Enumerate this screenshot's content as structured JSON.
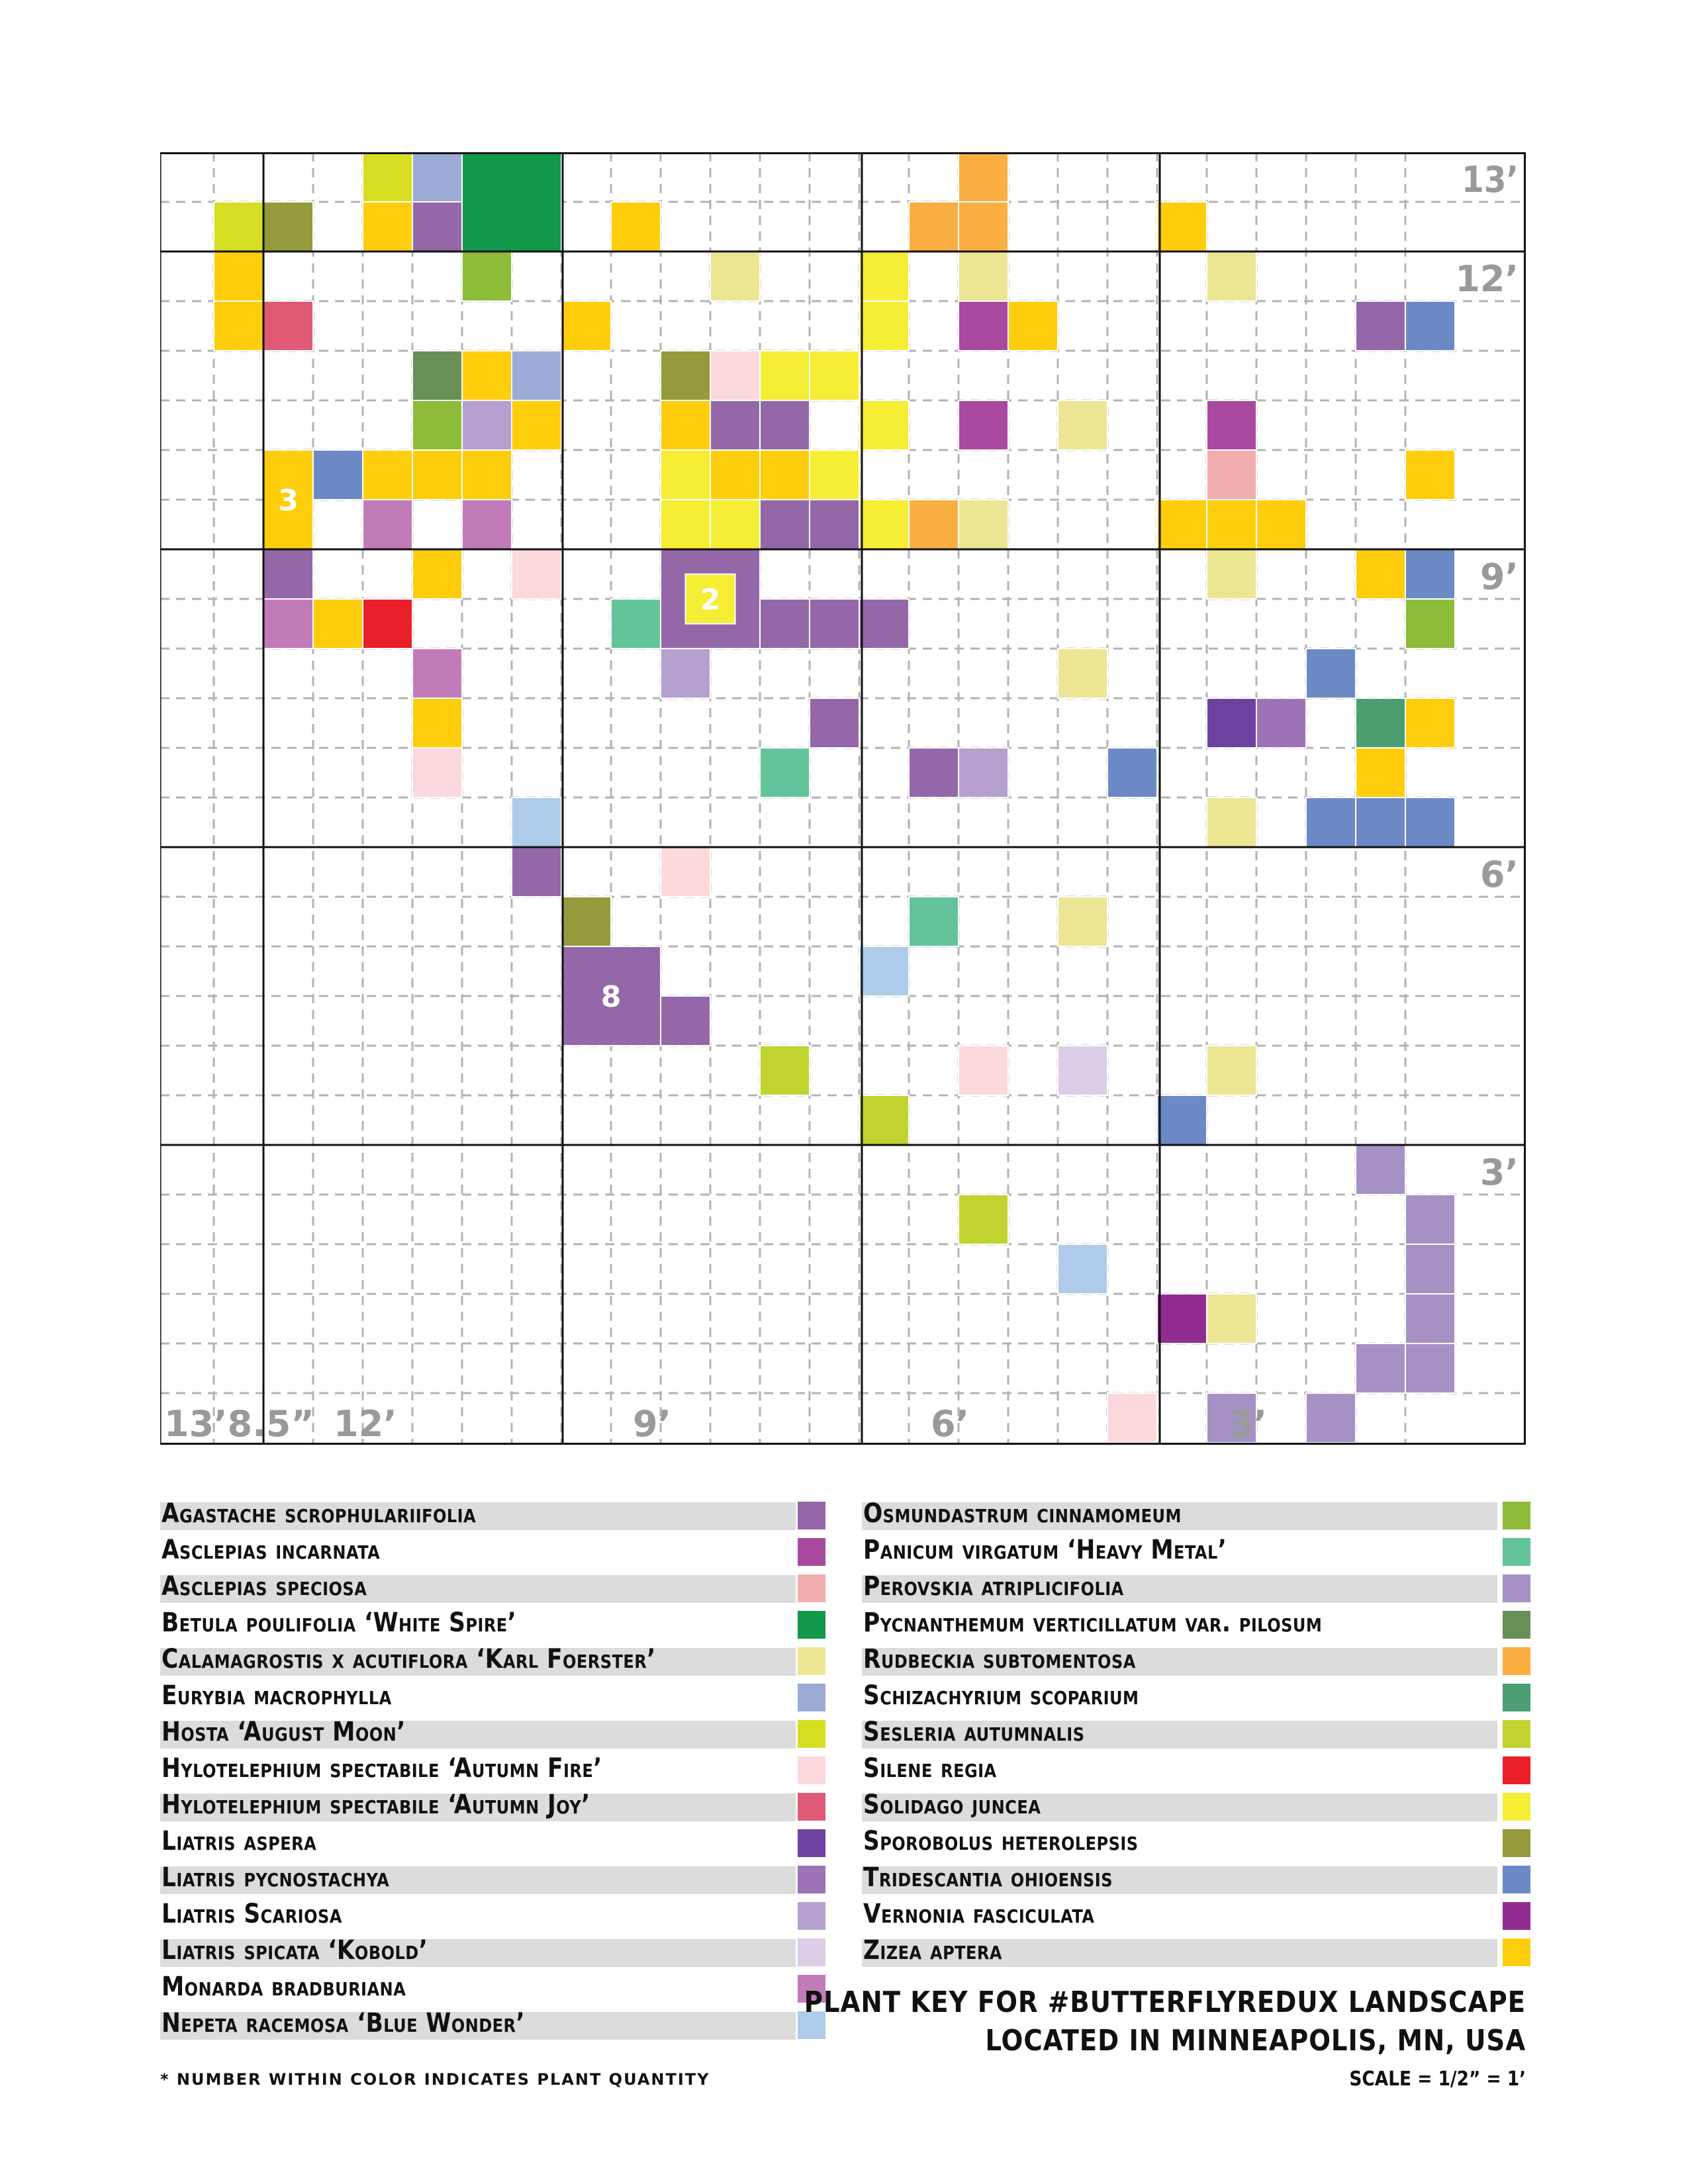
{
  "grid_labels": {
    "right_top": "13’",
    "right_12": "12’",
    "right_9": "9’",
    "right_6": "6’",
    "right_3": "3’",
    "bottom_left": "13’8.5”",
    "bottom_12": "12’",
    "bottom_9": "9’",
    "bottom_6": "6’",
    "bottom_3": "3’"
  },
  "colors": {
    "agastache": "#9468a8",
    "asc_incarnata": "#a9489f",
    "asc_speciosa": "#f2aeac",
    "betula": "#11984a",
    "calamagrostis": "#ece694",
    "eurybia": "#9caad6",
    "hosta": "#d6de22",
    "hylo_fire": "#fcd9dd",
    "hylo_joy": "#e05a77",
    "lia_aspera": "#6d41a0",
    "lia_pycno": "#9c73b4",
    "lia_scariosa": "#b6a0cf",
    "lia_kobold": "#dccde6",
    "monarda": "#c27bb9",
    "nepeta": "#aecbea",
    "osmund": "#8cbc38",
    "panicum": "#63c49c",
    "perovskia": "#a691c4",
    "pycnanth": "#678f56",
    "rudbeckia": "#fbae42",
    "schizach": "#4b9f72",
    "sesleria": "#c0d32f",
    "silene": "#ea1f29",
    "solidago": "#f6ed35",
    "sporobolus": "#959a3c",
    "tradescantia": "#6b8ac5",
    "vernonia": "#912d91",
    "zizea": "#fece0c"
  },
  "plant_map": {
    "cells": [
      {
        "plant": "hosta",
        "col": 1,
        "row": 1
      },
      {
        "plant": "zizea",
        "col": 1,
        "row": 2
      },
      {
        "plant": "zizea",
        "col": 1,
        "row": 3
      },
      {
        "plant": "sporobolus",
        "col": 2,
        "row": 1
      },
      {
        "plant": "hosta",
        "col": 4,
        "row": 0
      },
      {
        "plant": "eurybia",
        "col": 5,
        "row": 0
      },
      {
        "plant": "zizea",
        "col": 4,
        "row": 1
      },
      {
        "plant": "agastache",
        "col": 5,
        "row": 1
      },
      {
        "plant": "osmund",
        "col": 6,
        "row": 2
      },
      {
        "plant": "hylo_joy",
        "col": 2,
        "row": 3
      },
      {
        "plant": "pycnanth",
        "col": 5,
        "row": 4
      },
      {
        "plant": "zizea",
        "col": 6,
        "row": 4
      },
      {
        "plant": "eurybia",
        "col": 7,
        "row": 4
      },
      {
        "plant": "osmund",
        "col": 5,
        "row": 5
      },
      {
        "plant": "lia_scariosa",
        "col": 6,
        "row": 5
      },
      {
        "plant": "zizea",
        "col": 7,
        "row": 5
      },
      {
        "plant": "tradescantia",
        "col": 3,
        "row": 6
      },
      {
        "plant": "zizea",
        "col": 4,
        "row": 6
      },
      {
        "plant": "zizea",
        "col": 5,
        "row": 6
      },
      {
        "plant": "zizea",
        "col": 6,
        "row": 6
      },
      {
        "plant": "monarda",
        "col": 4,
        "row": 7
      },
      {
        "plant": "monarda",
        "col": 6,
        "row": 7
      },
      {
        "plant": "agastache",
        "col": 2,
        "row": 8
      },
      {
        "plant": "zizea",
        "col": 5,
        "row": 8
      },
      {
        "plant": "hylo_fire",
        "col": 7,
        "row": 8
      },
      {
        "plant": "monarda",
        "col": 2,
        "row": 9
      },
      {
        "plant": "zizea",
        "col": 3,
        "row": 9
      },
      {
        "plant": "silene",
        "col": 4,
        "row": 9
      },
      {
        "plant": "monarda",
        "col": 5,
        "row": 10
      },
      {
        "plant": "zizea",
        "col": 5,
        "row": 11
      },
      {
        "plant": "hylo_fire",
        "col": 5,
        "row": 12
      },
      {
        "plant": "nepeta",
        "col": 7,
        "row": 13
      },
      {
        "plant": "agastache",
        "col": 7,
        "row": 14
      },
      {
        "plant": "zizea",
        "col": 9,
        "row": 1
      },
      {
        "plant": "zizea",
        "col": 8,
        "row": 3
      },
      {
        "plant": "calamagrostis",
        "col": 11,
        "row": 2
      },
      {
        "plant": "sporobolus",
        "col": 10,
        "row": 4
      },
      {
        "plant": "hylo_fire",
        "col": 11,
        "row": 4
      },
      {
        "plant": "solidago",
        "col": 12,
        "row": 4
      },
      {
        "plant": "solidago",
        "col": 13,
        "row": 4
      },
      {
        "plant": "zizea",
        "col": 10,
        "row": 5
      },
      {
        "plant": "agastache",
        "col": 11,
        "row": 5
      },
      {
        "plant": "agastache",
        "col": 12,
        "row": 5
      },
      {
        "plant": "solidago",
        "col": 10,
        "row": 6
      },
      {
        "plant": "zizea",
        "col": 11,
        "row": 6
      },
      {
        "plant": "zizea",
        "col": 12,
        "row": 6
      },
      {
        "plant": "solidago",
        "col": 13,
        "row": 6
      },
      {
        "plant": "solidago",
        "col": 10,
        "row": 7
      },
      {
        "plant": "solidago",
        "col": 11,
        "row": 7
      },
      {
        "plant": "agastache",
        "col": 12,
        "row": 7
      },
      {
        "plant": "agastache",
        "col": 13,
        "row": 7
      },
      {
        "plant": "agastache",
        "col": 10,
        "row": 8
      },
      {
        "plant": "agastache",
        "col": 11,
        "row": 8
      },
      {
        "plant": "agastache",
        "col": 10,
        "row": 9
      },
      {
        "plant": "agastache",
        "col": 11,
        "row": 9
      },
      {
        "plant": "agastache",
        "col": 12,
        "row": 9
      },
      {
        "plant": "agastache",
        "col": 13,
        "row": 9
      },
      {
        "plant": "agastache",
        "col": 14,
        "row": 9
      },
      {
        "plant": "panicum",
        "col": 9,
        "row": 9
      },
      {
        "plant": "lia_scariosa",
        "col": 10,
        "row": 10
      },
      {
        "plant": "agastache",
        "col": 13,
        "row": 11
      },
      {
        "plant": "panicum",
        "col": 12,
        "row": 12
      },
      {
        "plant": "hylo_fire",
        "col": 10,
        "row": 14
      },
      {
        "plant": "sporobolus",
        "col": 8,
        "row": 15
      },
      {
        "plant": "agastache",
        "col": 10,
        "row": 17
      },
      {
        "plant": "sesleria",
        "col": 12,
        "row": 18
      },
      {
        "plant": "rudbeckia",
        "col": 16,
        "row": 0
      },
      {
        "plant": "rudbeckia",
        "col": 15,
        "row": 1
      },
      {
        "plant": "rudbeckia",
        "col": 16,
        "row": 1
      },
      {
        "plant": "solidago",
        "col": 14,
        "row": 2
      },
      {
        "plant": "calamagrostis",
        "col": 16,
        "row": 2
      },
      {
        "plant": "solidago",
        "col": 14,
        "row": 3
      },
      {
        "plant": "asc_incarnata",
        "col": 16,
        "row": 3
      },
      {
        "plant": "zizea",
        "col": 17,
        "row": 3
      },
      {
        "plant": "solidago",
        "col": 14,
        "row": 5
      },
      {
        "plant": "asc_incarnata",
        "col": 16,
        "row": 5
      },
      {
        "plant": "calamagrostis",
        "col": 18,
        "row": 5
      },
      {
        "plant": "solidago",
        "col": 14,
        "row": 7
      },
      {
        "plant": "rudbeckia",
        "col": 15,
        "row": 7
      },
      {
        "plant": "calamagrostis",
        "col": 16,
        "row": 7
      },
      {
        "plant": "calamagrostis",
        "col": 18,
        "row": 10
      },
      {
        "plant": "agastache",
        "col": 15,
        "row": 12
      },
      {
        "plant": "lia_scariosa",
        "col": 16,
        "row": 12
      },
      {
        "plant": "tradescantia",
        "col": 19,
        "row": 12
      },
      {
        "plant": "panicum",
        "col": 15,
        "row": 15
      },
      {
        "plant": "calamagrostis",
        "col": 18,
        "row": 15
      },
      {
        "plant": "nepeta",
        "col": 14,
        "row": 16
      },
      {
        "plant": "hylo_fire",
        "col": 16,
        "row": 18
      },
      {
        "plant": "lia_kobold",
        "col": 18,
        "row": 18
      },
      {
        "plant": "sesleria",
        "col": 14,
        "row": 19
      },
      {
        "plant": "sesleria",
        "col": 16,
        "row": 21
      },
      {
        "plant": "nepeta",
        "col": 18,
        "row": 22
      },
      {
        "plant": "hylo_fire",
        "col": 19,
        "row": 25
      },
      {
        "plant": "zizea",
        "col": 20,
        "row": 1
      },
      {
        "plant": "calamagrostis",
        "col": 21,
        "row": 2
      },
      {
        "plant": "agastache",
        "col": 24,
        "row": 3
      },
      {
        "plant": "tradescantia",
        "col": 25,
        "row": 3
      },
      {
        "plant": "asc_incarnata",
        "col": 21,
        "row": 5
      },
      {
        "plant": "asc_speciosa",
        "col": 21,
        "row": 6
      },
      {
        "plant": "zizea",
        "col": 25,
        "row": 6
      },
      {
        "plant": "zizea",
        "col": 20,
        "row": 7
      },
      {
        "plant": "zizea",
        "col": 21,
        "row": 7
      },
      {
        "plant": "zizea",
        "col": 22,
        "row": 7
      },
      {
        "plant": "calamagrostis",
        "col": 21,
        "row": 8
      },
      {
        "plant": "zizea",
        "col": 24,
        "row": 8
      },
      {
        "plant": "tradescantia",
        "col": 25,
        "row": 8
      },
      {
        "plant": "osmund",
        "col": 25,
        "row": 9
      },
      {
        "plant": "tradescantia",
        "col": 23,
        "row": 10
      },
      {
        "plant": "lia_aspera",
        "col": 21,
        "row": 11
      },
      {
        "plant": "lia_pycno",
        "col": 22,
        "row": 11
      },
      {
        "plant": "schizach",
        "col": 24,
        "row": 11
      },
      {
        "plant": "zizea",
        "col": 25,
        "row": 11
      },
      {
        "plant": "zizea",
        "col": 24,
        "row": 12
      },
      {
        "plant": "calamagrostis",
        "col": 21,
        "row": 13
      },
      {
        "plant": "tradescantia",
        "col": 23,
        "row": 13
      },
      {
        "plant": "tradescantia",
        "col": 24,
        "row": 13
      },
      {
        "plant": "tradescantia",
        "col": 25,
        "row": 13
      },
      {
        "plant": "calamagrostis",
        "col": 21,
        "row": 18
      },
      {
        "plant": "tradescantia",
        "col": 20,
        "row": 19
      },
      {
        "plant": "perovskia",
        "col": 24,
        "row": 20
      },
      {
        "plant": "perovskia",
        "col": 25,
        "row": 21
      },
      {
        "plant": "perovskia",
        "col": 25,
        "row": 22
      },
      {
        "plant": "vernonia",
        "col": 20,
        "row": 23
      },
      {
        "plant": "calamagrostis",
        "col": 21,
        "row": 23
      },
      {
        "plant": "perovskia",
        "col": 25,
        "row": 23
      },
      {
        "plant": "perovskia",
        "col": 24,
        "row": 24
      },
      {
        "plant": "perovskia",
        "col": 25,
        "row": 24
      },
      {
        "plant": "perovskia",
        "col": 21,
        "row": 25
      },
      {
        "plant": "perovskia",
        "col": 23,
        "row": 25
      }
    ],
    "blocks": [
      {
        "plant": "betula",
        "col": 6,
        "row": 0,
        "w": 2,
        "h": 2
      },
      {
        "plant": "zizea",
        "col": 2,
        "row": 6,
        "w": 1,
        "h": 2,
        "qty": "3"
      },
      {
        "plant": "agastache",
        "col": 10,
        "row": 8,
        "w": 2,
        "h": 2
      },
      {
        "plant": "solidago",
        "col": 10.5,
        "row": 8.5,
        "w": 1,
        "h": 1,
        "qty": "2"
      },
      {
        "plant": "agastache",
        "col": 8,
        "row": 16,
        "w": 2,
        "h": 2,
        "qty": "8"
      }
    ]
  },
  "legend_left": [
    {
      "name": "Agastache scrophulariifolia",
      "color": "agastache"
    },
    {
      "name": "Asclepias incarnata",
      "color": "asc_incarnata"
    },
    {
      "name": "Asclepias speciosa",
      "color": "asc_speciosa"
    },
    {
      "name": "Betula poulifolia ‘White Spire’",
      "color": "betula"
    },
    {
      "name": "Calamagrostis x acutiflora ‘Karl Foerster’",
      "color": "calamagrostis"
    },
    {
      "name": "Eurybia macrophylla",
      "color": "eurybia"
    },
    {
      "name": "Hosta ‘August Moon’",
      "color": "hosta"
    },
    {
      "name": "Hylotelephium spectabile ‘Autumn Fire’",
      "color": "hylo_fire"
    },
    {
      "name": "Hylotelephium spectabile ‘Autumn Joy’",
      "color": "hylo_joy"
    },
    {
      "name": "Liatris aspera",
      "color": "lia_aspera"
    },
    {
      "name": "Liatris pycnostachya",
      "color": "lia_pycno"
    },
    {
      "name": "Liatris Scariosa",
      "color": "lia_scariosa"
    },
    {
      "name": "Liatris spicata ‘Kobold’",
      "color": "lia_kobold"
    },
    {
      "name": "Monarda bradburiana",
      "color": "monarda"
    },
    {
      "name": "Nepeta racemosa ‘Blue Wonder’",
      "color": "nepeta"
    }
  ],
  "legend_right": [
    {
      "name": "Osmundastrum cinnamomeum",
      "color": "osmund"
    },
    {
      "name": "Panicum virgatum ‘Heavy Metal’",
      "color": "panicum"
    },
    {
      "name": "Perovskia atriplicifolia",
      "color": "perovskia"
    },
    {
      "name": "Pycnanthemum verticillatum var. pilosum",
      "color": "pycnanth"
    },
    {
      "name": "Rudbeckia subtomentosa",
      "color": "rudbeckia"
    },
    {
      "name": "Schizachyrium scoparium",
      "color": "schizach"
    },
    {
      "name": "Sesleria autumnalis",
      "color": "sesleria"
    },
    {
      "name": "Silene regia",
      "color": "silene"
    },
    {
      "name": "Solidago juncea",
      "color": "solidago"
    },
    {
      "name": "Sporobolus heterolepsis",
      "color": "sporobolus"
    },
    {
      "name": "Tridescantia ohioensis",
      "color": "tradescantia"
    },
    {
      "name": "Vernonia fasciculata",
      "color": "vernonia"
    },
    {
      "name": "Zizea aptera",
      "color": "zizea"
    }
  ],
  "title_line1": "PLANT KEY FOR #BUTTERFLYREDUX LANDSCAPE",
  "title_line2": "LOCATED IN MINNEAPOLIS, MN, USA",
  "scale": "SCALE = 1/2” = 1’",
  "footnote": "* NUMBER WITHIN COLOR INDICATES PLANT QUANTITY"
}
